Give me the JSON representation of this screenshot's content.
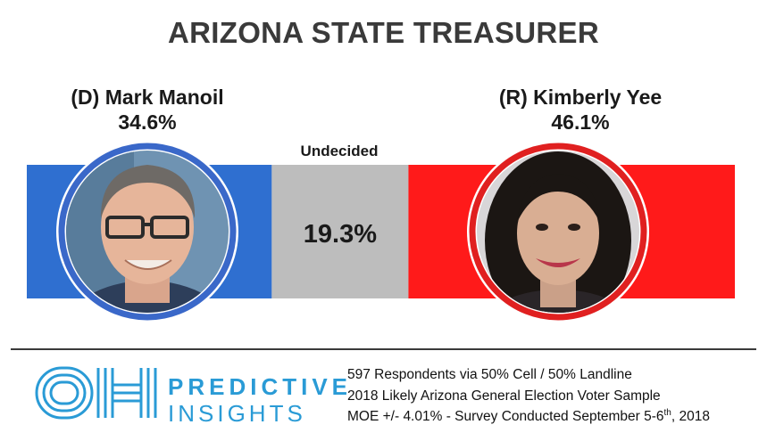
{
  "title": "ARIZONA STATE TREASURER",
  "chart_data": {
    "type": "bar",
    "orientation": "horizontal-stacked",
    "categories": [
      "(D) Mark Manoil",
      "Undecided",
      "(R) Kimberly Yee"
    ],
    "values": [
      34.6,
      19.3,
      46.1
    ],
    "labels": [
      "34.6%",
      "19.3%",
      "46.1%"
    ],
    "colors": [
      "#2f6fd0",
      "#bdbdbd",
      "#ff1a1a"
    ],
    "title": "ARIZONA STATE TREASURER"
  },
  "candidates": {
    "dem": {
      "name": "(D) Mark Manoil",
      "pct": "34.6%",
      "ring_color": "#3a68c9"
    },
    "undecided": {
      "name": "Undecided",
      "pct": "19.3%"
    },
    "rep": {
      "name": "(R) Kimberly Yee",
      "pct": "46.1%",
      "ring_color": "#e02020"
    }
  },
  "footer": {
    "logo_mark": "OH",
    "logo_line1": "PREDICTIVE",
    "logo_line2": "INSIGHTS",
    "logo_color": "#2a9bd6",
    "method_line1": "597 Respondents via 50% Cell / 50% Landline",
    "method_line2": "2018 Likely Arizona General Election Voter Sample",
    "method_line3_pre": "MOE +/- 4.01% - Survey Conducted September 5-6",
    "method_line3_sup": "th",
    "method_line3_post": ", 2018"
  }
}
